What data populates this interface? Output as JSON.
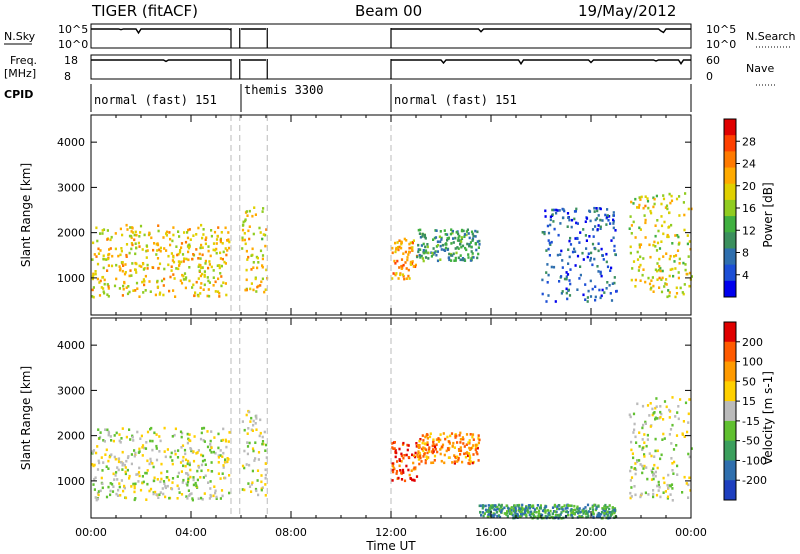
{
  "header": {
    "title": "TIGER (fitACF)",
    "beam": "Beam 00",
    "date": "19/May/2012"
  },
  "summary_panels": {
    "nsky": {
      "label": "N.Sky",
      "tick_top": "10^5",
      "tick_bottom": "10^0",
      "tick_top_right": "10^5",
      "tick_bottom_right": "10^0",
      "right_label": "N.Search"
    },
    "freq": {
      "label": "Freq.",
      "unit": "[MHz]",
      "tick_top": "18",
      "tick_bottom": "8",
      "tick_top_right": "60",
      "tick_bottom_right": "0",
      "right_label": "Nave"
    },
    "cpid": {
      "label": "CPID",
      "modes": [
        {
          "name": "normal (fast) 151",
          "start_hour": 0.0
        },
        {
          "name": "themis 3300",
          "start_hour": 6.0
        },
        {
          "name": "normal (fast) 151",
          "start_hour": 12.0
        }
      ]
    }
  },
  "chart_data": [
    {
      "type": "heatmap",
      "title": "",
      "xlabel": "Time UT",
      "ylabel": "Slant Range [km]",
      "xlim": [
        0,
        24
      ],
      "ylim": [
        180,
        4600
      ],
      "x_ticks": [
        "00:00",
        "04:00",
        "08:00",
        "12:00",
        "16:00",
        "20:00",
        "00:00"
      ],
      "x_tick_hours": [
        0,
        4,
        8,
        12,
        16,
        20,
        24
      ],
      "y_ticks": [
        1000,
        2000,
        3000,
        4000
      ],
      "colorbar": {
        "label": "Power [dB]",
        "ticks": [
          "28",
          "24",
          "20",
          "16",
          "12",
          "8",
          "4"
        ],
        "range": [
          0,
          30
        ],
        "colors": [
          "#0000ee",
          "#1d4fd6",
          "#2f6fae",
          "#3b8f5d",
          "#40b040",
          "#90cc20",
          "#e0d000",
          "#ffaa00",
          "#ff7a00",
          "#ff4000",
          "#e00000"
        ]
      },
      "data_gaps_hours": [
        [
          5.6,
          5.95
        ],
        [
          7.05,
          12.0
        ]
      ],
      "echo_regions": [
        {
          "t0": 0.0,
          "t1": 5.5,
          "r0": 600,
          "r1": 2200,
          "level": 0.62
        },
        {
          "t0": 6.0,
          "t1": 7.0,
          "r0": 700,
          "r1": 2600,
          "level": 0.6
        },
        {
          "t0": 12.0,
          "t1": 13.0,
          "r0": 1000,
          "r1": 1900,
          "level": 0.72
        },
        {
          "t0": 13.0,
          "t1": 15.5,
          "r0": 1400,
          "r1": 2100,
          "level": 0.35
        },
        {
          "t0": 18.0,
          "t1": 21.0,
          "r0": 500,
          "r1": 2600,
          "level": 0.18
        },
        {
          "t0": 21.5,
          "t1": 24.0,
          "r0": 600,
          "r1": 2900,
          "level": 0.58
        }
      ]
    },
    {
      "type": "heatmap",
      "title": "",
      "xlabel": "Time UT",
      "ylabel": "Slant Range [km]",
      "xlim": [
        0,
        24
      ],
      "ylim": [
        180,
        4600
      ],
      "x_ticks": [
        "00:00",
        "04:00",
        "08:00",
        "12:00",
        "16:00",
        "20:00",
        "00:00"
      ],
      "x_tick_hours": [
        0,
        4,
        8,
        12,
        16,
        20,
        24
      ],
      "y_ticks": [
        1000,
        2000,
        3000,
        4000
      ],
      "colorbar": {
        "label": "Velocity [m s-1]",
        "ticks": [
          "200",
          "100",
          "50",
          "15",
          "-15",
          "-50",
          "-100",
          "-200"
        ],
        "range": [
          -250,
          250
        ],
        "colors": [
          "#1e3fbf",
          "#2f6fae",
          "#3b9f5d",
          "#60c030",
          "#bbbbbb",
          "#ffd000",
          "#ff9a00",
          "#ff5a00",
          "#e00000"
        ]
      },
      "data_gaps_hours": [
        [
          5.6,
          5.95
        ],
        [
          7.05,
          12.0
        ]
      ],
      "echo_regions": [
        {
          "t0": 0.0,
          "t1": 5.5,
          "r0": 600,
          "r1": 2200,
          "level": 0.5
        },
        {
          "t0": 6.0,
          "t1": 7.0,
          "r0": 700,
          "r1": 2600,
          "level": 0.5
        },
        {
          "t0": 12.0,
          "t1": 13.0,
          "r0": 1000,
          "r1": 1900,
          "level": 0.88
        },
        {
          "t0": 13.0,
          "t1": 15.5,
          "r0": 1400,
          "r1": 2100,
          "level": 0.75
        },
        {
          "t0": 15.5,
          "t1": 21.0,
          "r0": 200,
          "r1": 500,
          "level": 0.28
        },
        {
          "t0": 21.5,
          "t1": 24.0,
          "r0": 600,
          "r1": 2900,
          "level": 0.5
        }
      ]
    }
  ]
}
